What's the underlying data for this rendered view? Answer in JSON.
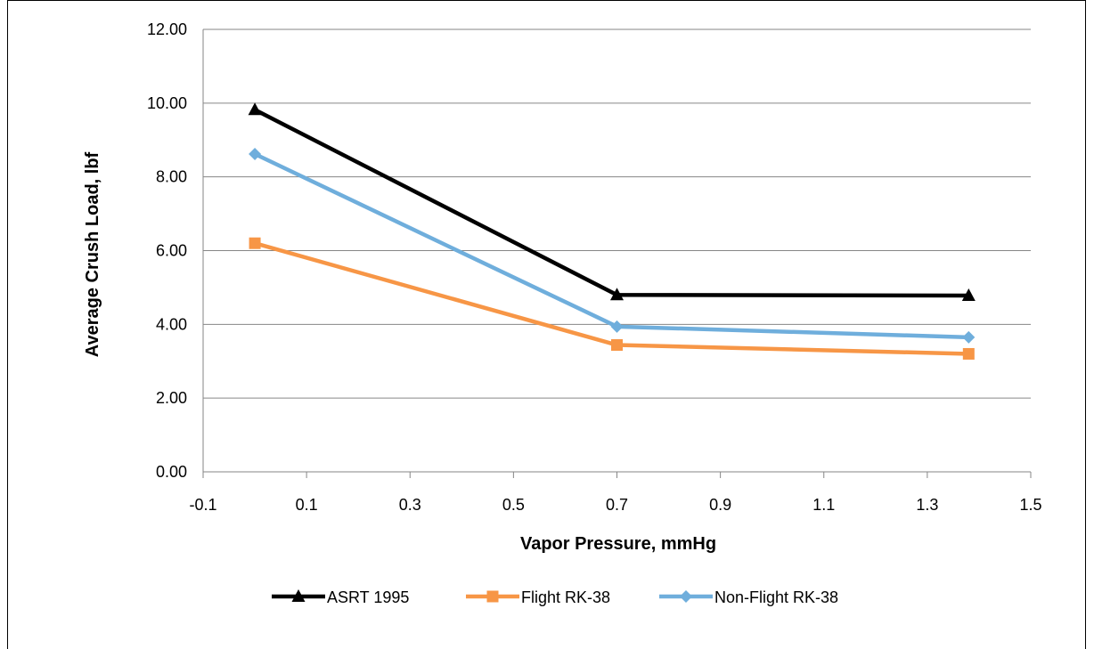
{
  "chart_data": {
    "type": "line",
    "title": "",
    "xlabel": "Vapor Pressure, mmHg",
    "ylabel": "Average Crush Load, lbf",
    "xlim": [
      -0.1,
      1.5
    ],
    "ylim": [
      0,
      12
    ],
    "x_ticks": [
      "-0.1",
      "0.1",
      "0.3",
      "0.5",
      "0.7",
      "0.9",
      "1.1",
      "1.3",
      "1.5"
    ],
    "y_ticks": [
      "0.00",
      "2.00",
      "4.00",
      "6.00",
      "8.00",
      "10.00",
      "12.00"
    ],
    "grid": "horizontal",
    "legend_position": "bottom",
    "series": [
      {
        "name": "ASRT 1995",
        "color": "#000000",
        "marker": "triangle",
        "x": [
          0,
          0.7,
          1.38
        ],
        "y": [
          9.82,
          4.8,
          4.78
        ]
      },
      {
        "name": "Flight RK-38",
        "color": "#F79646",
        "marker": "square",
        "x": [
          0,
          0.7,
          1.38
        ],
        "y": [
          6.2,
          3.44,
          3.2
        ]
      },
      {
        "name": "Non-Flight RK-38",
        "color": "#6FAEDC",
        "marker": "diamond",
        "x": [
          0,
          0.7,
          1.38
        ],
        "y": [
          8.62,
          3.94,
          3.65
        ]
      }
    ]
  }
}
